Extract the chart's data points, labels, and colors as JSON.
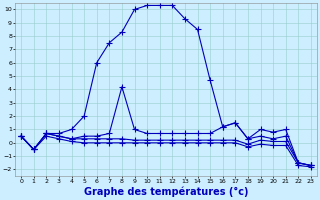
{
  "bg_color": "#cceeff",
  "grid_color": "#99cccc",
  "line_color": "#0000bb",
  "marker": "+",
  "markersize": 4,
  "linewidth": 0.8,
  "xlabel": "Graphe des températures (°c)",
  "xlabel_fontsize": 7,
  "xlim": [
    -0.5,
    23.5
  ],
  "ylim": [
    -2.5,
    10.5
  ],
  "yticks": [
    -2,
    -1,
    0,
    1,
    2,
    3,
    4,
    5,
    6,
    7,
    8,
    9,
    10
  ],
  "xticks": [
    0,
    1,
    2,
    3,
    4,
    5,
    6,
    7,
    8,
    9,
    10,
    11,
    12,
    13,
    14,
    15,
    16,
    17,
    18,
    19,
    20,
    21,
    22,
    23
  ],
  "series": [
    [
      0.5,
      -0.5,
      0.7,
      0.7,
      1.0,
      2.0,
      6.0,
      7.5,
      8.3,
      10.0,
      10.3,
      10.3,
      10.3,
      9.3,
      8.5,
      4.7,
      1.2,
      1.5,
      0.3,
      1.0,
      0.8,
      1.0,
      -1.5,
      -1.7
    ],
    [
      0.5,
      -0.5,
      0.7,
      0.5,
      0.3,
      0.5,
      0.5,
      0.7,
      4.2,
      1.0,
      0.7,
      0.7,
      0.7,
      0.7,
      0.7,
      0.7,
      1.2,
      1.5,
      0.3,
      0.5,
      0.3,
      0.5,
      -1.5,
      -1.7
    ],
    [
      0.5,
      -0.5,
      0.7,
      0.5,
      0.3,
      0.3,
      0.3,
      0.3,
      0.3,
      0.2,
      0.2,
      0.2,
      0.2,
      0.2,
      0.2,
      0.2,
      0.2,
      0.2,
      -0.1,
      0.2,
      0.1,
      0.1,
      -1.5,
      -1.7
    ],
    [
      0.5,
      -0.5,
      0.5,
      0.3,
      0.1,
      0.0,
      0.0,
      0.0,
      0.0,
      0.0,
      0.0,
      0.0,
      0.0,
      0.0,
      0.0,
      0.0,
      0.0,
      0.0,
      -0.3,
      -0.1,
      -0.2,
      -0.2,
      -1.7,
      -1.8
    ]
  ]
}
